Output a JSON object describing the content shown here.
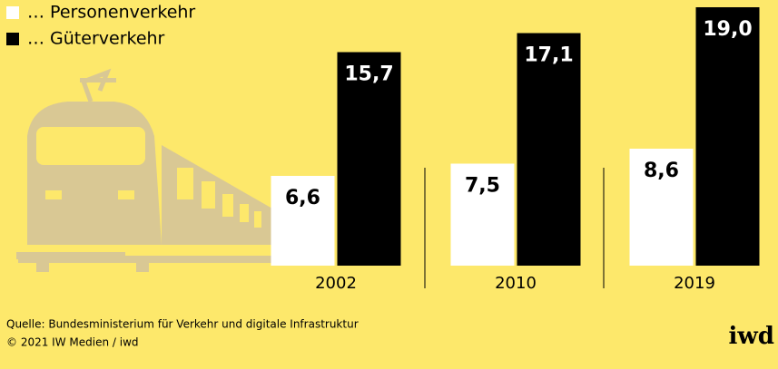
{
  "chart_data": {
    "type": "bar",
    "categories": [
      "2002",
      "2010",
      "2019"
    ],
    "series": [
      {
        "name": "… Personenverkehr",
        "color": "#ffffff",
        "label_color": "#000000",
        "values": [
          6.6,
          7.5,
          8.6
        ],
        "value_labels": [
          "6,6",
          "7,5",
          "8,6"
        ]
      },
      {
        "name": "… Güterverkehr",
        "color": "#000000",
        "label_color": "#ffffff",
        "values": [
          15.7,
          17.1,
          19.0
        ],
        "value_labels": [
          "15,7",
          "17,1",
          "19,0"
        ]
      }
    ],
    "source": "Quelle: Bundesministerium für Verkehr und digitale Infrastruktur",
    "credit": "© 2021 IW Medien / iwd",
    "logo": "iwd"
  }
}
